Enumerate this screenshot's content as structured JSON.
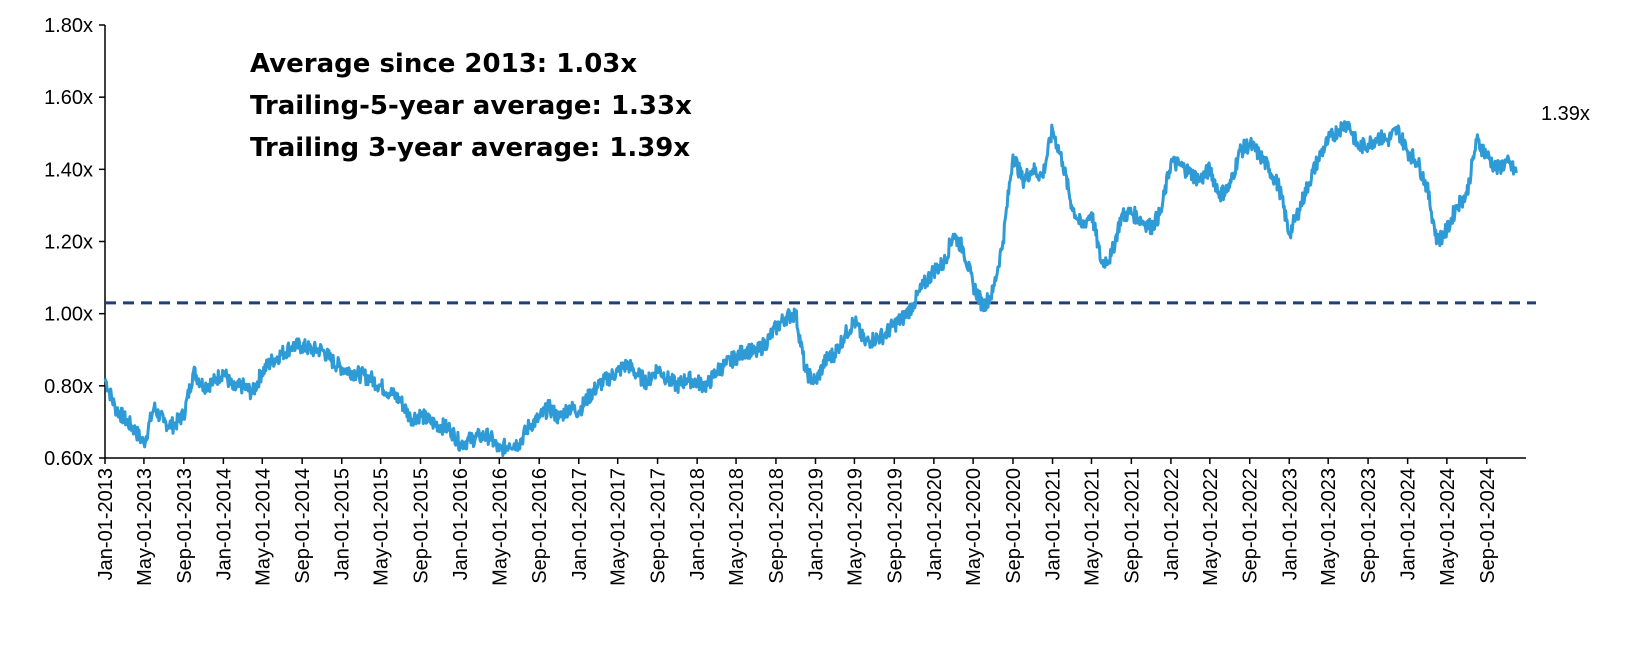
{
  "chart_data": {
    "type": "line",
    "title": "",
    "xlabel": "",
    "ylabel": "",
    "ylim": [
      0.6,
      1.8
    ],
    "x_range": [
      "Jan-01-2013",
      "Dec-31-2024"
    ],
    "y_ticks": [
      "0.60x",
      "0.80x",
      "1.00x",
      "1.20x",
      "1.40x",
      "1.60x",
      "1.80x"
    ],
    "y_tick_values": [
      0.6,
      0.8,
      1.0,
      1.2,
      1.4,
      1.6,
      1.8
    ],
    "x_ticks": [
      "Jan-01-2013",
      "May-01-2013",
      "Sep-01-2013",
      "Jan-01-2014",
      "May-01-2014",
      "Sep-01-2014",
      "Jan-01-2015",
      "May-01-2015",
      "Sep-01-2015",
      "Jan-01-2016",
      "May-01-2016",
      "Sep-01-2016",
      "Jan-01-2017",
      "May-01-2017",
      "Sep-01-2017",
      "Jan-01-2018",
      "May-01-2018",
      "Sep-01-2018",
      "Jan-01-2019",
      "May-01-2019",
      "Sep-01-2019",
      "Jan-01-2020",
      "May-01-2020",
      "Sep-01-2020",
      "Jan-01-2021",
      "May-01-2021",
      "Sep-01-2021",
      "Jan-01-2022",
      "May-01-2022",
      "Sep-01-2022",
      "Jan-01-2023",
      "May-01-2023",
      "Sep-01-2023",
      "Jan-01-2024",
      "May-01-2024",
      "Sep-01-2024"
    ],
    "grid": false,
    "series": [
      {
        "color": "#2E9BD6",
        "points": [
          [
            "2013-01-01",
            0.82
          ],
          [
            "2013-02-01",
            0.74
          ],
          [
            "2013-03-01",
            0.71
          ],
          [
            "2013-04-01",
            0.68
          ],
          [
            "2013-05-01",
            0.64
          ],
          [
            "2013-06-01",
            0.74
          ],
          [
            "2013-07-01",
            0.7
          ],
          [
            "2013-08-01",
            0.69
          ],
          [
            "2013-09-01",
            0.72
          ],
          [
            "2013-10-01",
            0.84
          ],
          [
            "2013-11-01",
            0.8
          ],
          [
            "2013-12-01",
            0.81
          ],
          [
            "2014-01-01",
            0.84
          ],
          [
            "2014-02-01",
            0.79
          ],
          [
            "2014-03-01",
            0.8
          ],
          [
            "2014-04-01",
            0.78
          ],
          [
            "2014-05-01",
            0.84
          ],
          [
            "2014-06-01",
            0.87
          ],
          [
            "2014-07-01",
            0.89
          ],
          [
            "2014-08-01",
            0.91
          ],
          [
            "2014-09-01",
            0.91
          ],
          [
            "2014-10-01",
            0.9
          ],
          [
            "2014-11-01",
            0.9
          ],
          [
            "2014-12-01",
            0.87
          ],
          [
            "2015-01-01",
            0.85
          ],
          [
            "2015-02-01",
            0.84
          ],
          [
            "2015-03-01",
            0.83
          ],
          [
            "2015-04-01",
            0.82
          ],
          [
            "2015-05-01",
            0.8
          ],
          [
            "2015-06-01",
            0.78
          ],
          [
            "2015-07-01",
            0.76
          ],
          [
            "2015-08-01",
            0.71
          ],
          [
            "2015-09-01",
            0.72
          ],
          [
            "2015-10-01",
            0.7
          ],
          [
            "2015-11-01",
            0.69
          ],
          [
            "2015-12-01",
            0.68
          ],
          [
            "2016-01-01",
            0.64
          ],
          [
            "2016-02-01",
            0.65
          ],
          [
            "2016-03-01",
            0.66
          ],
          [
            "2016-04-01",
            0.66
          ],
          [
            "2016-05-01",
            0.62
          ],
          [
            "2016-06-01",
            0.64
          ],
          [
            "2016-07-01",
            0.64
          ],
          [
            "2016-08-01",
            0.69
          ],
          [
            "2016-09-01",
            0.71
          ],
          [
            "2016-10-01",
            0.74
          ],
          [
            "2016-11-01",
            0.71
          ],
          [
            "2016-12-01",
            0.74
          ],
          [
            "2017-01-01",
            0.73
          ],
          [
            "2017-02-01",
            0.77
          ],
          [
            "2017-03-01",
            0.8
          ],
          [
            "2017-04-01",
            0.82
          ],
          [
            "2017-05-01",
            0.84
          ],
          [
            "2017-06-01",
            0.86
          ],
          [
            "2017-07-01",
            0.83
          ],
          [
            "2017-08-01",
            0.81
          ],
          [
            "2017-09-01",
            0.85
          ],
          [
            "2017-10-01",
            0.82
          ],
          [
            "2017-11-01",
            0.8
          ],
          [
            "2017-12-01",
            0.82
          ],
          [
            "2018-01-01",
            0.81
          ],
          [
            "2018-02-01",
            0.8
          ],
          [
            "2018-03-01",
            0.84
          ],
          [
            "2018-04-01",
            0.86
          ],
          [
            "2018-05-01",
            0.88
          ],
          [
            "2018-06-01",
            0.9
          ],
          [
            "2018-07-01",
            0.89
          ],
          [
            "2018-08-01",
            0.92
          ],
          [
            "2018-09-01",
            0.96
          ],
          [
            "2018-10-01",
            0.99
          ],
          [
            "2018-11-01",
            1.0
          ],
          [
            "2018-12-01",
            0.84
          ],
          [
            "2019-01-01",
            0.81
          ],
          [
            "2019-02-01",
            0.87
          ],
          [
            "2019-03-01",
            0.89
          ],
          [
            "2019-04-01",
            0.94
          ],
          [
            "2019-05-01",
            0.98
          ],
          [
            "2019-06-01",
            0.92
          ],
          [
            "2019-07-01",
            0.93
          ],
          [
            "2019-08-01",
            0.94
          ],
          [
            "2019-09-01",
            0.97
          ],
          [
            "2019-10-01",
            0.99
          ],
          [
            "2019-11-01",
            1.03
          ],
          [
            "2019-12-01",
            1.08
          ],
          [
            "2020-01-01",
            1.12
          ],
          [
            "2020-02-01",
            1.14
          ],
          [
            "2020-03-01",
            1.22
          ],
          [
            "2020-04-01",
            1.18
          ],
          [
            "2020-05-01",
            1.08
          ],
          [
            "2020-06-01",
            1.02
          ],
          [
            "2020-07-01",
            1.06
          ],
          [
            "2020-08-01",
            1.2
          ],
          [
            "2020-09-01",
            1.44
          ],
          [
            "2020-10-01",
            1.37
          ],
          [
            "2020-11-01",
            1.4
          ],
          [
            "2020-12-01",
            1.38
          ],
          [
            "2021-01-01",
            1.51
          ],
          [
            "2021-02-01",
            1.42
          ],
          [
            "2021-03-01",
            1.3
          ],
          [
            "2021-04-01",
            1.24
          ],
          [
            "2021-05-01",
            1.28
          ],
          [
            "2021-06-01",
            1.14
          ],
          [
            "2021-07-01",
            1.16
          ],
          [
            "2021-08-01",
            1.27
          ],
          [
            "2021-09-01",
            1.28
          ],
          [
            "2021-10-01",
            1.26
          ],
          [
            "2021-11-01",
            1.24
          ],
          [
            "2021-12-01",
            1.28
          ],
          [
            "2022-01-01",
            1.42
          ],
          [
            "2022-02-01",
            1.41
          ],
          [
            "2022-03-01",
            1.39
          ],
          [
            "2022-04-01",
            1.37
          ],
          [
            "2022-05-01",
            1.4
          ],
          [
            "2022-06-01",
            1.33
          ],
          [
            "2022-07-01",
            1.35
          ],
          [
            "2022-08-01",
            1.45
          ],
          [
            "2022-09-01",
            1.47
          ],
          [
            "2022-10-01",
            1.44
          ],
          [
            "2022-11-01",
            1.4
          ],
          [
            "2022-12-01",
            1.35
          ],
          [
            "2023-01-01",
            1.22
          ],
          [
            "2023-02-01",
            1.29
          ],
          [
            "2023-03-01",
            1.36
          ],
          [
            "2023-04-01",
            1.43
          ],
          [
            "2023-05-01",
            1.48
          ],
          [
            "2023-06-01",
            1.51
          ],
          [
            "2023-07-01",
            1.53
          ],
          [
            "2023-08-01",
            1.46
          ],
          [
            "2023-09-01",
            1.47
          ],
          [
            "2023-10-01",
            1.49
          ],
          [
            "2023-11-01",
            1.48
          ],
          [
            "2023-12-01",
            1.51
          ],
          [
            "2024-01-01",
            1.45
          ],
          [
            "2024-02-01",
            1.42
          ],
          [
            "2024-03-01",
            1.35
          ],
          [
            "2024-04-01",
            1.2
          ],
          [
            "2024-05-01",
            1.23
          ],
          [
            "2024-06-01",
            1.3
          ],
          [
            "2024-07-01",
            1.33
          ],
          [
            "2024-08-01",
            1.48
          ],
          [
            "2024-09-01",
            1.44
          ],
          [
            "2024-10-01",
            1.4
          ],
          [
            "2024-11-01",
            1.42
          ],
          [
            "2024-12-01",
            1.39
          ]
        ]
      }
    ],
    "reference_line": {
      "value": 1.03,
      "style": "dashed",
      "color": "#1F3F7A"
    },
    "annotations": [
      "Average since 2013: 1.03x",
      "Trailing-5-year average: 1.33x",
      "Trailing 3-year average: 1.39x"
    ],
    "end_label": "1.39x"
  }
}
